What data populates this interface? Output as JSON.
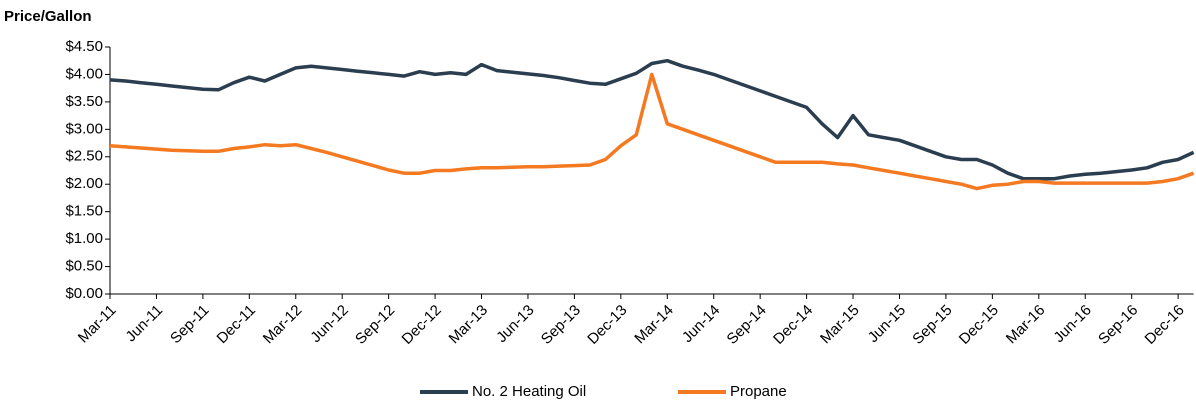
{
  "chart_data": {
    "type": "line",
    "title": "Price/Gallon",
    "categories": [
      "Mar-11",
      null,
      null,
      "Jun-11",
      null,
      null,
      "Sep-11",
      null,
      null,
      "Dec-11",
      null,
      null,
      "Mar-12",
      null,
      null,
      "Jun-12",
      null,
      null,
      "Sep-12",
      null,
      null,
      "Dec-12",
      null,
      null,
      "Mar-13",
      null,
      null,
      "Jun-13",
      null,
      null,
      "Sep-13",
      null,
      null,
      "Dec-13",
      null,
      null,
      "Mar-14",
      null,
      null,
      "Jun-14",
      null,
      null,
      "Sep-14",
      null,
      null,
      "Dec-14",
      null,
      null,
      "Mar-15",
      null,
      null,
      "Jun-15",
      null,
      null,
      "Sep-15",
      null,
      null,
      "Dec-15",
      null,
      null,
      "Mar-16",
      null,
      null,
      "Jun-16",
      null,
      null,
      "Sep-16",
      null,
      null,
      "Dec-16",
      null
    ],
    "series": [
      {
        "name": "No. 2 Heating Oil",
        "color": "#2b3e50",
        "values": [
          3.9,
          3.88,
          3.85,
          3.82,
          3.79,
          3.76,
          3.73,
          3.72,
          3.85,
          3.95,
          3.88,
          4.0,
          4.12,
          4.15,
          4.12,
          4.09,
          4.06,
          4.03,
          4.0,
          3.97,
          4.05,
          4.0,
          4.03,
          4.0,
          4.18,
          4.07,
          4.04,
          4.01,
          3.98,
          3.94,
          3.89,
          3.84,
          3.82,
          3.92,
          4.02,
          4.2,
          4.25,
          4.15,
          4.08,
          4.0,
          3.9,
          3.8,
          3.7,
          3.6,
          3.5,
          3.4,
          3.1,
          2.85,
          3.25,
          2.9,
          2.85,
          2.8,
          2.7,
          2.6,
          2.5,
          2.45,
          2.45,
          2.35,
          2.2,
          2.1,
          2.1,
          2.1,
          2.15,
          2.18,
          2.2,
          2.23,
          2.26,
          2.3,
          2.4,
          2.45,
          2.58
        ]
      },
      {
        "name": "Propane",
        "color": "#f47920",
        "values": [
          2.7,
          2.68,
          2.66,
          2.64,
          2.62,
          2.61,
          2.6,
          2.6,
          2.65,
          2.68,
          2.72,
          2.7,
          2.72,
          2.65,
          2.58,
          2.5,
          2.42,
          2.34,
          2.26,
          2.2,
          2.2,
          2.25,
          2.25,
          2.28,
          2.3,
          2.3,
          2.31,
          2.32,
          2.32,
          2.33,
          2.34,
          2.35,
          2.45,
          2.7,
          2.9,
          4.0,
          3.1,
          3.0,
          2.9,
          2.8,
          2.7,
          2.6,
          2.5,
          2.4,
          2.4,
          2.4,
          2.4,
          2.37,
          2.35,
          2.3,
          2.25,
          2.2,
          2.15,
          2.1,
          2.05,
          2.0,
          1.92,
          1.98,
          2.0,
          2.05,
          2.05,
          2.02,
          2.02,
          2.02,
          2.02,
          2.02,
          2.02,
          2.02,
          2.05,
          2.1,
          2.2
        ]
      }
    ],
    "ylim": [
      0,
      4.5
    ],
    "yticks": [
      {
        "value": 0,
        "label": "$0.00"
      },
      {
        "value": 0.5,
        "label": "$0.50"
      },
      {
        "value": 1,
        "label": "$1.00"
      },
      {
        "value": 1.5,
        "label": "$1.50"
      },
      {
        "value": 2,
        "label": "$2.00"
      },
      {
        "value": 2.5,
        "label": "$2.50"
      },
      {
        "value": 3,
        "label": "$3.00"
      },
      {
        "value": 3.5,
        "label": "$3.50"
      },
      {
        "value": 4,
        "label": "$4.00"
      },
      {
        "value": 4.5,
        "label": "$4.50"
      }
    ],
    "grid": false,
    "legend": "bottom"
  }
}
